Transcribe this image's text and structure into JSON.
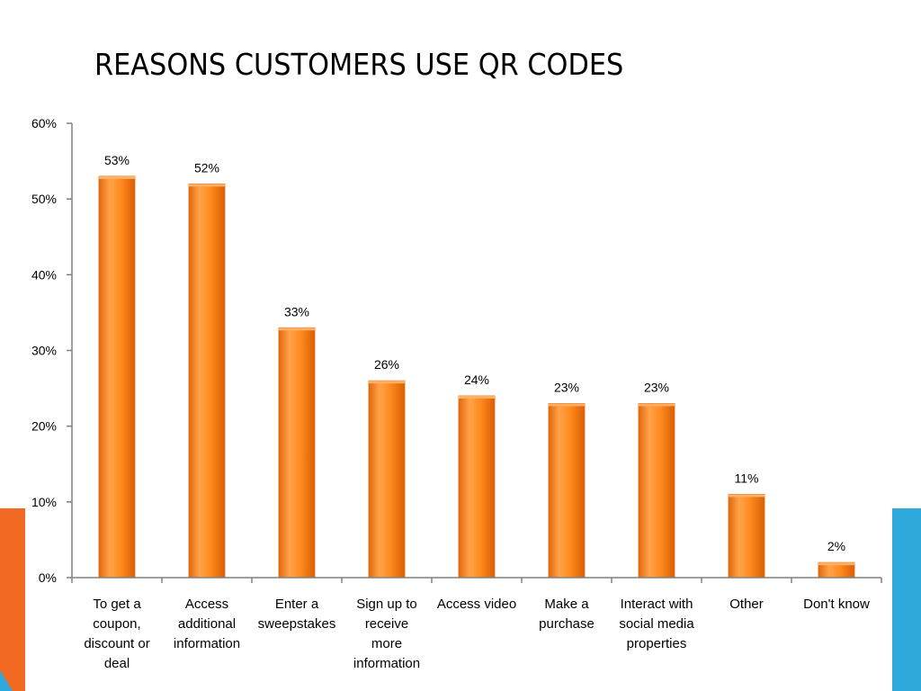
{
  "slide": {
    "title": "REASONS CUSTOMERS USE QR CODES"
  },
  "colors": {
    "bar_main": "#ff8a1f",
    "bar_light": "#ffb066",
    "bar_dark": "#e0680a",
    "axis": "#808080",
    "accent_orange": "#f26a21",
    "accent_blue": "#2fa8dc"
  },
  "chart_data": {
    "type": "bar",
    "title": "",
    "xlabel": "",
    "ylabel": "",
    "ylim": [
      0,
      60
    ],
    "yticks": [
      0,
      10,
      20,
      30,
      40,
      50,
      60
    ],
    "ytick_suffix": "%",
    "grid": false,
    "legend": "none",
    "categories": [
      [
        "To get a",
        "coupon,",
        "discount or",
        "deal"
      ],
      [
        "Access",
        "additional",
        "information"
      ],
      [
        "Enter a",
        "sweepstakes"
      ],
      [
        "Sign up to",
        "receive",
        "more",
        "information"
      ],
      [
        "Access video"
      ],
      [
        "Make a",
        "purchase"
      ],
      [
        "Interact with",
        "social media",
        "properties"
      ],
      [
        "Other"
      ],
      [
        "Don't know"
      ]
    ],
    "values": [
      53,
      52,
      33,
      26,
      24,
      23,
      23,
      11,
      2
    ],
    "data_labels": [
      "53%",
      "52%",
      "33%",
      "26%",
      "24%",
      "23%",
      "23%",
      "11%",
      "2%"
    ]
  }
}
